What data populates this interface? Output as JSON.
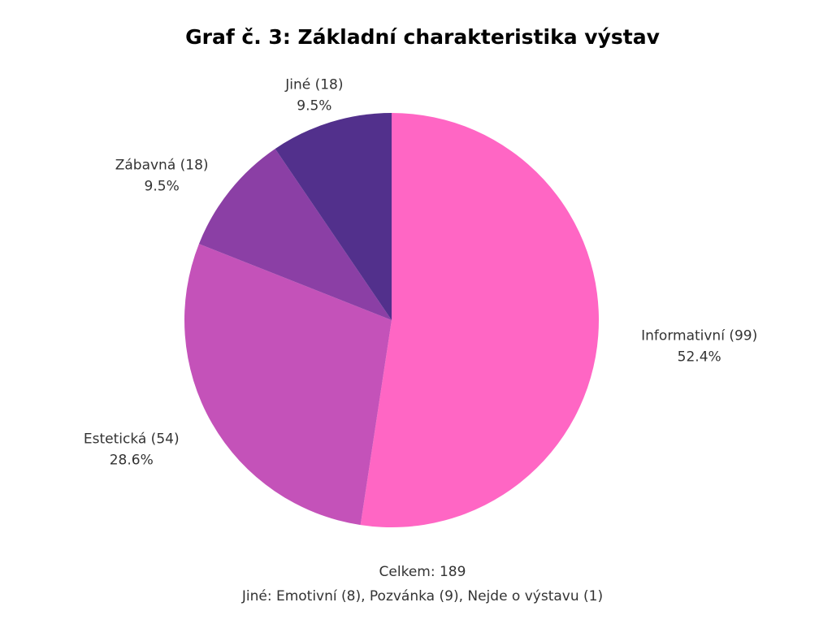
{
  "chart_data": {
    "type": "pie",
    "title": "Graf č. 3: Základní charakteristika výstav",
    "categories": [
      "Informativní (99)",
      "Estetická (54)",
      "Zábavná (18)",
      "Jiné (18)"
    ],
    "values": [
      52.4,
      28.6,
      9.5,
      9.5
    ],
    "value_labels": [
      "52.4%",
      "28.6%",
      "9.5%",
      "9.5%"
    ],
    "colors": [
      "#ff66c4",
      "#c452b9",
      "#8b3fa5",
      "#52308c"
    ],
    "annotations": [
      "Celkem: 189",
      "Jiné: Emotivní (8), Pozvánka (9), Nejde o výstavu (1)"
    ]
  }
}
